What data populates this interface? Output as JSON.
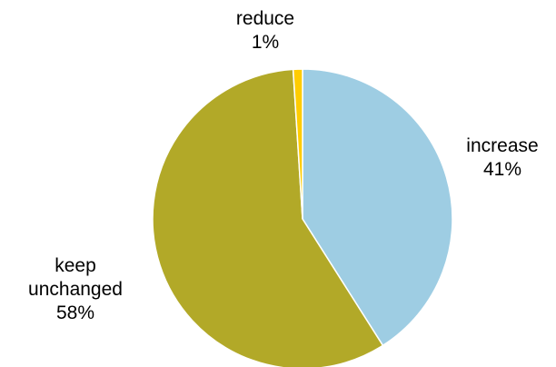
{
  "chart_data": {
    "type": "pie",
    "title": "",
    "slices": [
      {
        "name": "increase",
        "value": 41,
        "label": "41%",
        "color": "#9ecde3"
      },
      {
        "name": "keep",
        "name_line2": "unchanged",
        "value": 58,
        "label": "58%",
        "color": "#b2a928"
      },
      {
        "name": "reduce",
        "value": 1,
        "label": "1%",
        "color": "#ffcc00"
      }
    ],
    "start_angle_deg": 0,
    "direction": "clockwise"
  }
}
